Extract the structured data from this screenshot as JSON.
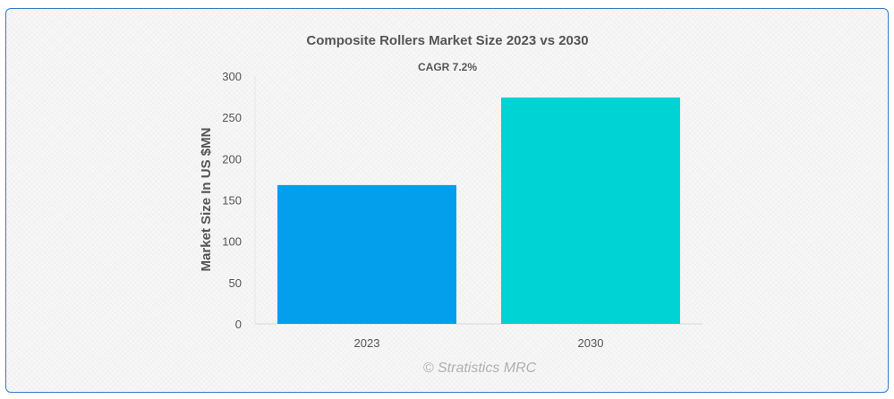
{
  "chart_data": {
    "type": "bar",
    "title": "Composite Rollers Market Size 2023 vs 2030",
    "subtitle": "CAGR 7.2%",
    "xlabel": "",
    "ylabel": "Market Size In US $MN",
    "categories": [
      "2023",
      "2030"
    ],
    "values": [
      168,
      274
    ],
    "colors": [
      "#039fec",
      "#00d3d3"
    ],
    "ylim": [
      0,
      300
    ],
    "yticks": [
      "0",
      "50",
      "100",
      "150",
      "200",
      "250",
      "300"
    ],
    "grid": false,
    "legend": "none"
  },
  "credit": "© Stratistics MRC"
}
